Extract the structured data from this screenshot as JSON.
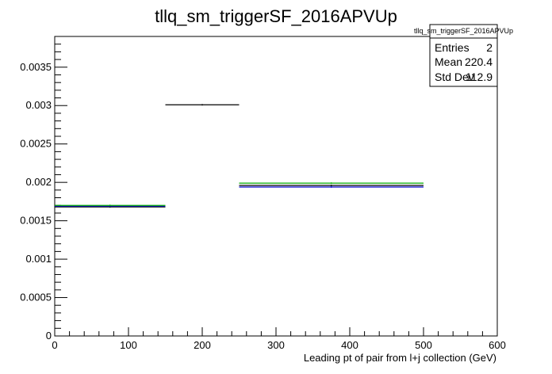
{
  "chart_data": {
    "type": "histogram",
    "title": "tllq_sm_triggerSF_2016APVUp",
    "xlabel": "Leading pt of pair from l+j collection (GeV)",
    "ylabel": "",
    "xlim": [
      0,
      600
    ],
    "ylim": [
      0,
      0.0039
    ],
    "x_ticks": [
      0,
      100,
      200,
      300,
      400,
      500,
      600
    ],
    "x_tick_labels": [
      "0",
      "100",
      "200",
      "300",
      "400",
      "500",
      "600"
    ],
    "y_ticks": [
      0,
      0.0005,
      0.001,
      0.0015,
      0.002,
      0.0025,
      0.003,
      0.0035
    ],
    "y_tick_labels": [
      "0",
      "0.0005",
      "0.001",
      "0.0015",
      "0.002",
      "0.0025",
      "0.003",
      "0.0035"
    ],
    "grid": false,
    "legend": "none",
    "stats": {
      "name": "tllq_sm_triggerSF_2016APVUp",
      "rows": [
        {
          "label": "Entries",
          "value": "2"
        },
        {
          "label": "Mean",
          "value": "220.4"
        },
        {
          "label": "Std Dev",
          "value": "112.9"
        }
      ]
    },
    "series": [
      {
        "color": "#000000",
        "bins": [
          {
            "x0": 0,
            "x1": 150,
            "y": 0.00168
          },
          {
            "x0": 150,
            "x1": 250,
            "y": 0.00301
          },
          {
            "x0": 250,
            "x1": 500,
            "y": 0.00196
          }
        ]
      },
      {
        "color": "#0000cc",
        "bins": [
          {
            "x0": 0,
            "x1": 150,
            "y": 0.00169
          },
          {
            "x0": 250,
            "x1": 500,
            "y": 0.00194
          }
        ]
      },
      {
        "color": "#00aa00",
        "bins": [
          {
            "x0": 0,
            "x1": 150,
            "y": 0.0017
          },
          {
            "x0": 250,
            "x1": 500,
            "y": 0.00199
          }
        ]
      }
    ]
  }
}
